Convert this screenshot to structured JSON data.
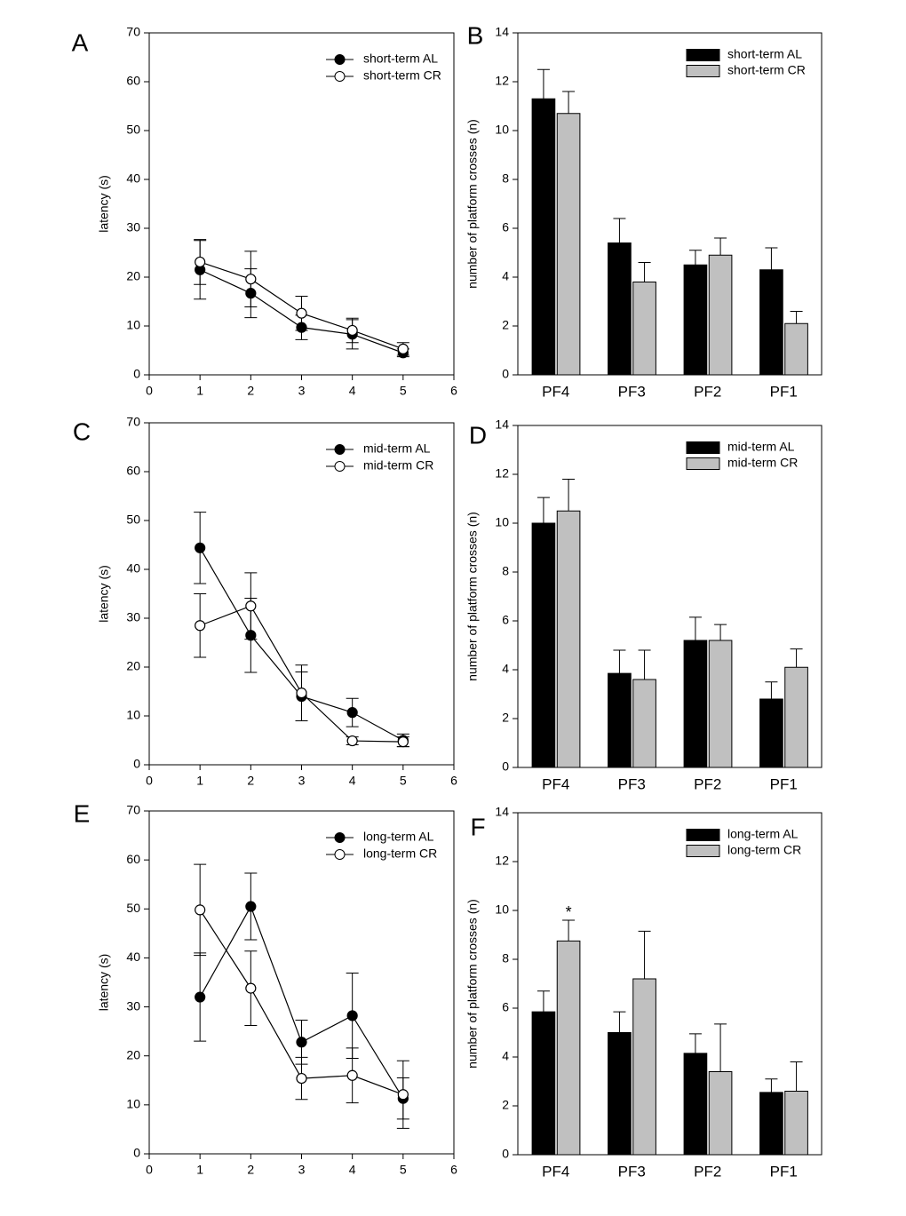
{
  "chart_data": [
    {
      "type": "line",
      "panel": "A",
      "ylabel": "latency (s)",
      "x": [
        1,
        2,
        3,
        4,
        5
      ],
      "xlim": [
        0,
        6
      ],
      "xticks": [
        0,
        1,
        2,
        3,
        4,
        5,
        6
      ],
      "ylim": [
        0,
        70
      ],
      "yticks": [
        0,
        10,
        20,
        30,
        40,
        50,
        60,
        70
      ],
      "legend": "upper right",
      "series": [
        {
          "name": "short-term AL",
          "color": "#000000",
          "values": [
            21.5,
            16.7,
            9.7,
            8.3,
            4.5
          ],
          "errors": [
            6,
            5,
            2.5,
            3,
            0.8
          ]
        },
        {
          "name": "short-term CR",
          "color": "#ffffff",
          "values": [
            23.1,
            19.6,
            12.6,
            9.1,
            5.3
          ],
          "errors": [
            4.6,
            5.7,
            3.5,
            2.5,
            1.3
          ]
        }
      ]
    },
    {
      "type": "bar",
      "panel": "B",
      "ylabel": "number of platform crosses (n)",
      "categories": [
        "PF4",
        "PF3",
        "PF2",
        "PF1"
      ],
      "ylim": [
        0,
        14
      ],
      "yticks": [
        0,
        2,
        4,
        6,
        8,
        10,
        12,
        14
      ],
      "legend": "upper right",
      "series": [
        {
          "name": "short-term AL",
          "color": "#000000",
          "values": [
            11.3,
            5.4,
            4.5,
            4.3
          ],
          "errors": [
            1.2,
            1.0,
            0.6,
            0.9
          ]
        },
        {
          "name": "short-term CR",
          "color": "#c0c0c0",
          "values": [
            10.7,
            3.8,
            4.9,
            2.1
          ],
          "errors": [
            0.9,
            0.8,
            0.7,
            0.5
          ]
        }
      ]
    },
    {
      "type": "line",
      "panel": "C",
      "ylabel": "latency (s)",
      "x": [
        1,
        2,
        3,
        4,
        5
      ],
      "xlim": [
        0,
        6
      ],
      "xticks": [
        0,
        1,
        2,
        3,
        4,
        5,
        6
      ],
      "ylim": [
        0,
        70
      ],
      "yticks": [
        0,
        10,
        20,
        30,
        40,
        50,
        60,
        70
      ],
      "legend": "upper right",
      "series": [
        {
          "name": "mid-term AL",
          "color": "#000000",
          "values": [
            44.4,
            26.5,
            14.0,
            10.7,
            5.0
          ],
          "errors": [
            7.3,
            7.6,
            5.0,
            2.9,
            1.3
          ]
        },
        {
          "name": "mid-term CR",
          "color": "#ffffff",
          "values": [
            28.5,
            32.5,
            14.7,
            4.9,
            4.7
          ],
          "errors": [
            6.5,
            6.8,
            5.7,
            0.8,
            1.0
          ]
        }
      ]
    },
    {
      "type": "bar",
      "panel": "D",
      "ylabel": "number of platform crosses (n)",
      "categories": [
        "PF4",
        "PF3",
        "PF2",
        "PF1"
      ],
      "ylim": [
        0,
        14
      ],
      "yticks": [
        0,
        2,
        4,
        6,
        8,
        10,
        12,
        14
      ],
      "legend": "upper right",
      "series": [
        {
          "name": "mid-term AL",
          "color": "#000000",
          "values": [
            10.0,
            3.85,
            5.2,
            2.8
          ],
          "errors": [
            1.05,
            0.95,
            0.95,
            0.7
          ]
        },
        {
          "name": "mid-term CR",
          "color": "#c0c0c0",
          "values": [
            10.5,
            3.6,
            5.2,
            4.1
          ],
          "errors": [
            1.3,
            1.2,
            0.65,
            0.75
          ]
        }
      ]
    },
    {
      "type": "line",
      "panel": "E",
      "ylabel": "latency (s)",
      "x": [
        1,
        2,
        3,
        4,
        5
      ],
      "xlim": [
        0,
        6
      ],
      "xticks": [
        0,
        1,
        2,
        3,
        4,
        5,
        6
      ],
      "ylim": [
        0,
        70
      ],
      "yticks": [
        0,
        10,
        20,
        30,
        40,
        50,
        60,
        70
      ],
      "legend": "upper right",
      "series": [
        {
          "name": "long-term AL",
          "color": "#000000",
          "values": [
            32,
            50.5,
            22.8,
            28.2,
            11.3
          ],
          "errors": [
            9,
            6.8,
            4.5,
            8.7,
            4.2
          ]
        },
        {
          "name": "long-term CR",
          "color": "#ffffff",
          "values": [
            49.8,
            33.8,
            15.4,
            16,
            12.1
          ],
          "errors": [
            9.3,
            7.6,
            4.3,
            5.6,
            6.9
          ]
        }
      ]
    },
    {
      "type": "bar",
      "panel": "F",
      "ylabel": "number of platform crosses (n)",
      "categories": [
        "PF4",
        "PF3",
        "PF2",
        "PF1"
      ],
      "ylim": [
        0,
        14
      ],
      "yticks": [
        0,
        2,
        4,
        6,
        8,
        10,
        12,
        14
      ],
      "legend": "upper right",
      "annotations": [
        {
          "text": "*",
          "category": "PF4",
          "series": "long-term CR"
        }
      ],
      "series": [
        {
          "name": "long-term AL",
          "color": "#000000",
          "values": [
            5.85,
            5.0,
            4.15,
            2.55
          ],
          "errors": [
            0.85,
            0.85,
            0.8,
            0.55
          ]
        },
        {
          "name": "long-term CR",
          "color": "#c0c0c0",
          "values": [
            8.75,
            7.2,
            3.4,
            2.6
          ],
          "errors": [
            0.85,
            1.95,
            1.95,
            1.2
          ]
        }
      ]
    }
  ]
}
